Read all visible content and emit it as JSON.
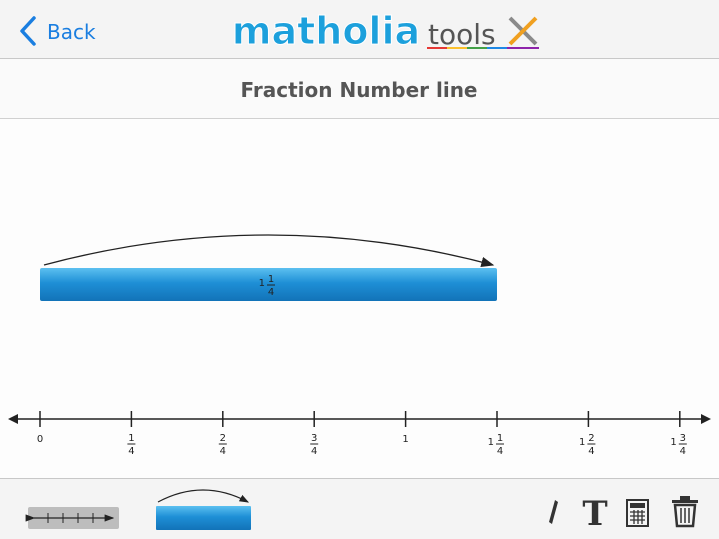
{
  "header": {
    "back": "Back",
    "logo": "matholia",
    "logo_suffix": "tools"
  },
  "title": "Fraction Number line",
  "bar": {
    "whole": "1",
    "numerator": "1",
    "denominator": "4"
  },
  "number_line": {
    "ticks": [
      {
        "whole": "0"
      },
      {
        "numerator": "1",
        "denominator": "4"
      },
      {
        "numerator": "2",
        "denominator": "4"
      },
      {
        "numerator": "3",
        "denominator": "4"
      },
      {
        "whole": "1"
      },
      {
        "whole": "1",
        "numerator": "1",
        "denominator": "4"
      },
      {
        "whole": "1",
        "numerator": "2",
        "denominator": "4"
      },
      {
        "whole": "1",
        "numerator": "3",
        "denominator": "4"
      }
    ]
  }
}
